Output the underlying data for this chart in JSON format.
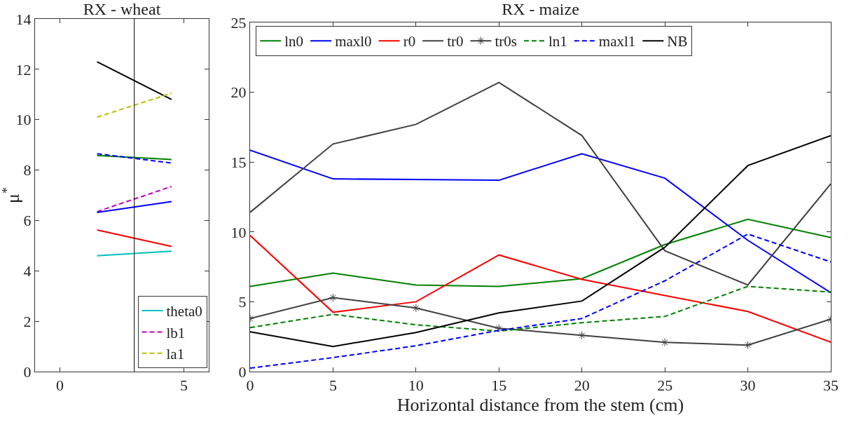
{
  "chart_data": [
    {
      "type": "line",
      "title": "RX - wheat",
      "ylabel": "μ$^{*}$",
      "x": [
        1.5,
        4.5
      ],
      "xlim": [
        -1,
        6
      ],
      "xticks": [
        0,
        5
      ],
      "ylim": [
        0,
        14
      ],
      "yticks": [
        0,
        2,
        4,
        6,
        8,
        10,
        12,
        14
      ],
      "grid": false,
      "legend": "bottom right",
      "marker": "none",
      "ref_lines": [
        {
          "axis": "x",
          "value": 3,
          "color": "#000000"
        }
      ],
      "series": [
        {
          "color": "#000000",
          "values": [
            12.3,
            10.8
          ],
          "line_style": "solid"
        },
        {
          "name": "la1",
          "color": "#bfbf00",
          "values": [
            10.1,
            11.05
          ],
          "line_style": "dashed"
        },
        {
          "color": "#008000",
          "values": [
            8.58,
            8.42
          ],
          "line_style": "solid"
        },
        {
          "color": "#0000ff",
          "values": [
            8.65,
            8.28
          ],
          "line_style": "dashed"
        },
        {
          "name": "lb1",
          "color": "#bf00bf",
          "values": [
            6.35,
            7.35
          ],
          "line_style": "dashed"
        },
        {
          "color": "#0000ff",
          "values": [
            6.32,
            6.75
          ],
          "line_style": "solid"
        },
        {
          "color": "#ff0000",
          "values": [
            5.62,
            4.97
          ],
          "line_style": "solid"
        },
        {
          "name": "theta0",
          "color": "#00bfbf",
          "values": [
            4.6,
            4.78
          ],
          "line_style": "solid"
        }
      ]
    },
    {
      "type": "line",
      "title": "RX - maize",
      "xlabel": "Horizontal distance from the stem (cm)",
      "x": [
        0,
        5,
        10,
        15,
        20,
        25,
        30,
        35
      ],
      "xlim": [
        0,
        35
      ],
      "xticks": [
        0,
        5,
        10,
        15,
        20,
        25,
        30,
        35
      ],
      "ylim": [
        0,
        25
      ],
      "yticks": [
        0,
        5,
        10,
        15,
        20,
        25
      ],
      "grid": false,
      "legend": "top",
      "marker": "none",
      "series": [
        {
          "name": "ln0",
          "color": "#008000",
          "values": [
            6.1,
            7.05,
            6.2,
            6.1,
            6.65,
            9.1,
            10.9,
            9.6
          ],
          "line_style": "solid"
        },
        {
          "name": "maxl0",
          "color": "#0000ff",
          "values": [
            15.85,
            13.8,
            13.75,
            13.7,
            15.6,
            13.85,
            9.4,
            5.65
          ],
          "line_style": "solid"
        },
        {
          "name": "r0",
          "color": "#ff0000",
          "values": [
            9.75,
            4.25,
            5.0,
            8.35,
            6.6,
            5.45,
            4.3,
            2.1
          ],
          "line_style": "solid"
        },
        {
          "name": "tr0",
          "color": "#404040",
          "values": [
            11.4,
            16.3,
            17.7,
            20.7,
            16.9,
            8.65,
            6.2,
            13.45
          ],
          "line_style": "solid"
        },
        {
          "name": "tr0s",
          "color": "#404040",
          "values": [
            3.8,
            5.3,
            4.55,
            3.1,
            2.6,
            2.1,
            1.9,
            3.75
          ],
          "line_style": "solid",
          "marker": "cross"
        },
        {
          "name": "ln1",
          "color": "#008000",
          "values": [
            3.15,
            4.1,
            3.35,
            2.9,
            3.5,
            3.95,
            6.1,
            5.7
          ],
          "line_style": "dashed"
        },
        {
          "name": "maxl1",
          "color": "#0000ff",
          "values": [
            0.25,
            1.0,
            1.85,
            2.95,
            3.8,
            6.5,
            9.85,
            7.85
          ],
          "line_style": "dashed"
        },
        {
          "name": "NB",
          "color": "#000000",
          "values": [
            2.85,
            1.8,
            2.8,
            4.2,
            5.05,
            8.9,
            14.75,
            16.9
          ],
          "line_style": "solid"
        }
      ]
    }
  ]
}
